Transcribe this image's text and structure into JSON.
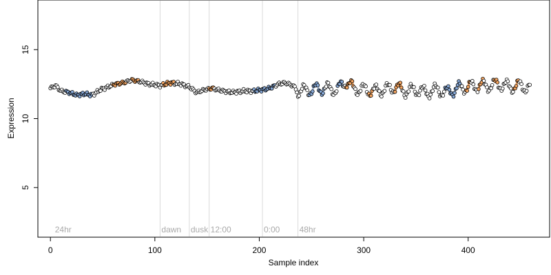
{
  "chart_data": {
    "type": "scatter",
    "xlabel": "Sample index",
    "ylabel": "Expression",
    "xlim": [
      -12,
      478
    ],
    "ylim": [
      1.4,
      18.6
    ],
    "x_ticks": [
      0,
      100,
      200,
      300,
      400
    ],
    "y_ticks": [
      5,
      10,
      15
    ],
    "grid": false,
    "region_markers": [
      {
        "label": "24hr",
        "x": 3
      },
      {
        "label": "dawn",
        "x": 105
      },
      {
        "label": "dusk",
        "x": 133
      },
      {
        "label": "12:00",
        "x": 152
      },
      {
        "label": "0:00",
        "x": 203
      },
      {
        "label": "48hr",
        "x": 237
      }
    ],
    "colors": {
      "point_fill": "#ffffff",
      "point_edge": "#000000",
      "highlight_orange": "#f4a460",
      "highlight_blue": "#87a9d8",
      "trend_blue": "#aabfdd",
      "region_line": "#d9d9d9"
    },
    "anchors": [
      [
        0,
        12.2
      ],
      [
        5,
        12.4
      ],
      [
        10,
        12.0
      ],
      [
        18,
        11.9
      ],
      [
        25,
        11.7
      ],
      [
        32,
        11.8
      ],
      [
        40,
        11.7
      ],
      [
        48,
        12.1
      ],
      [
        55,
        12.3
      ],
      [
        62,
        12.5
      ],
      [
        70,
        12.6
      ],
      [
        78,
        12.8
      ],
      [
        85,
        12.7
      ],
      [
        95,
        12.5
      ],
      [
        105,
        12.4
      ],
      [
        115,
        12.6
      ],
      [
        125,
        12.5
      ],
      [
        133,
        12.3
      ],
      [
        140,
        11.9
      ],
      [
        148,
        12.1
      ],
      [
        155,
        12.2
      ],
      [
        165,
        12.0
      ],
      [
        175,
        11.9
      ],
      [
        185,
        12.0
      ],
      [
        195,
        12.0
      ],
      [
        203,
        12.1
      ],
      [
        210,
        12.2
      ],
      [
        218,
        12.5
      ],
      [
        225,
        12.6
      ],
      [
        232,
        12.4
      ],
      [
        238,
        12.0
      ],
      [
        250,
        12.1
      ],
      [
        262,
        12.2
      ],
      [
        275,
        12.1
      ],
      [
        283,
        12.7
      ],
      [
        290,
        12.2
      ],
      [
        300,
        12.1
      ],
      [
        310,
        12.0
      ],
      [
        320,
        12.1
      ],
      [
        330,
        12.3
      ],
      [
        340,
        12.0
      ],
      [
        350,
        12.1
      ],
      [
        360,
        11.9
      ],
      [
        370,
        12.1
      ],
      [
        380,
        11.9
      ],
      [
        390,
        12.2
      ],
      [
        400,
        12.3
      ],
      [
        410,
        12.4
      ],
      [
        420,
        12.4
      ],
      [
        430,
        12.5
      ],
      [
        440,
        12.3
      ],
      [
        450,
        12.4
      ],
      [
        460,
        12.2
      ]
    ],
    "orange_ranges": [
      [
        60,
        72
      ],
      [
        78,
        84
      ],
      [
        108,
        118
      ],
      [
        152,
        156
      ],
      [
        283,
        290
      ],
      [
        305,
        308
      ],
      [
        330,
        336
      ],
      [
        398,
        402
      ],
      [
        410,
        414
      ],
      [
        425,
        428
      ],
      [
        444,
        448
      ]
    ],
    "blue_ranges": [
      [
        15,
        40
      ],
      [
        195,
        215
      ],
      [
        248,
        262
      ],
      [
        275,
        280
      ],
      [
        378,
        392
      ]
    ],
    "n_points": 460
  }
}
